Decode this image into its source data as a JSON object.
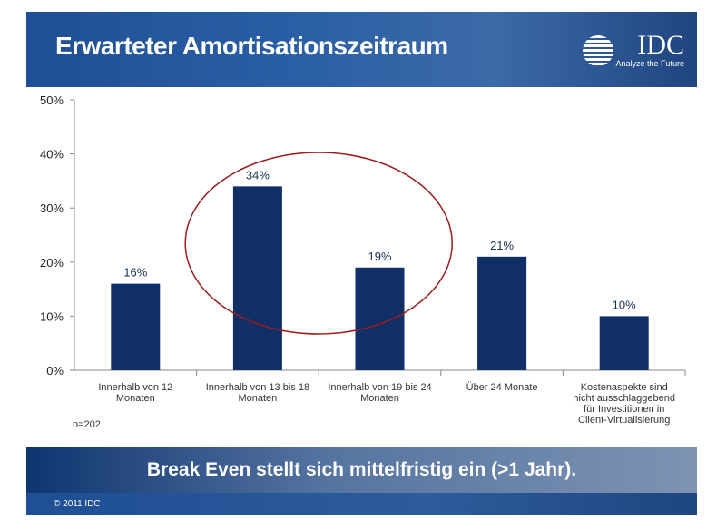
{
  "header": {
    "title": "Erwarteter Amortisationszeitraum",
    "logo_text": "IDC",
    "logo_tagline": "Analyze the Future"
  },
  "chart_data": {
    "type": "bar",
    "categories": [
      "Innerhalb von 12 Monaten",
      "Innerhalb von 13 bis 18 Monaten",
      "Innerhalb von 19 bis 24 Monaten",
      "Über 24 Monate",
      "Kostenaspekte sind nicht ausschlaggebend für Investitionen in Client-Virtualisierung"
    ],
    "values": [
      16,
      34,
      19,
      21,
      10
    ],
    "data_labels": [
      "16%",
      "34%",
      "19%",
      "21%",
      "10%"
    ],
    "yticks": [
      "0%",
      "10%",
      "20%",
      "30%",
      "40%",
      "50%"
    ],
    "ylim": [
      0,
      50
    ],
    "grid": false,
    "bar_color": "#0f2f66",
    "highlight_ellipse": "categories 2-3",
    "ellipse_color": "#9b1c1c"
  },
  "note": "n=202",
  "banner": "Break Even stellt sich mittelfristig ein (>1 Jahr).",
  "footer": {
    "copyright": "© 2011 IDC"
  }
}
